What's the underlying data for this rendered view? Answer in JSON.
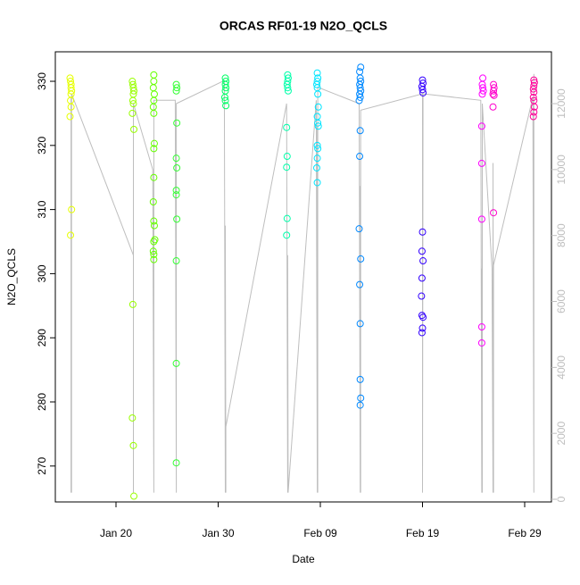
{
  "chart_data": {
    "type": "scatter",
    "title": "ORCAS RF01-19 N2O_QCLS",
    "x_label": "Date",
    "y_label": "N2O_QCLS",
    "xlim": [
      14.06,
      62.62
    ],
    "ylim": [
      264.4,
      334.6
    ],
    "y2lim": [
      -81,
      13572
    ],
    "xticks": [
      {
        "value": 20,
        "label": "Jan 20"
      },
      {
        "value": 30,
        "label": "Jan 30"
      },
      {
        "value": 40,
        "label": "Feb 09"
      },
      {
        "value": 50,
        "label": "Feb 19"
      },
      {
        "value": 60,
        "label": "Feb 29"
      }
    ],
    "yticks": [
      270,
      280,
      290,
      300,
      310,
      320,
      330
    ],
    "y2ticks": [
      0,
      2000,
      4000,
      6000,
      8000,
      10000,
      12000
    ],
    "line_series": {
      "axis": "y2",
      "color": "#bebebe",
      "x": [
        15.6,
        15.6,
        15.65,
        15.65,
        21.7,
        21.7,
        21.7,
        23.6,
        23.7,
        23.7,
        25.8,
        25.9,
        25.9,
        30.6,
        30.7,
        30.7,
        30.75,
        30.75,
        36.7,
        36.8,
        36.8,
        36.85,
        39.6,
        39.7,
        39.7,
        39.75,
        39.75,
        43.8,
        43.9,
        43.9,
        43.95,
        43.95,
        50.0,
        50.0,
        50.05,
        55.7,
        55.8,
        55.8,
        55.85,
        55.85,
        56.8,
        56.9,
        56.9,
        56.95,
        56.95,
        60.8,
        60.9,
        60.9
      ],
      "values": [
        200,
        12200,
        200,
        12300,
        7400,
        200,
        12000,
        10000,
        200,
        12100,
        12100,
        200,
        12000,
        12700,
        200,
        8300,
        200,
        2200,
        12000,
        200,
        7400,
        200,
        12100,
        200,
        11300,
        200,
        12500,
        12000,
        200,
        9500,
        200,
        11800,
        12300,
        200,
        12300,
        12100,
        200,
        7000,
        200,
        12000,
        7000,
        200,
        10200,
        200,
        7100,
        12200,
        200,
        12900
      ]
    },
    "series": [
      {
        "color": "#e6ff00",
        "x": [
          15.5,
          15.55,
          15.6,
          15.6,
          15.65,
          15.6,
          15.55,
          15.6,
          15.5,
          15.65,
          15.55
        ],
        "values": [
          330.5,
          330,
          329.5,
          329,
          328.5,
          328,
          327,
          326,
          324.5,
          310,
          306
        ]
      },
      {
        "color": "#99ff00",
        "x": [
          21.6,
          21.65,
          21.7,
          21.75,
          21.7,
          21.65,
          21.7,
          21.6,
          21.75,
          21.65,
          21.6,
          21.7,
          21.75
        ],
        "values": [
          330,
          329.5,
          329,
          328.5,
          328,
          327,
          326.5,
          325,
          322.5,
          295.2,
          277.5,
          273.2,
          265.3
        ]
      },
      {
        "color": "#66ff00",
        "x": [
          23.7,
          23.7,
          23.65,
          23.75,
          23.7,
          23.65,
          23.7,
          23.75,
          23.7,
          23.7,
          23.65,
          23.7,
          23.75,
          23.8,
          23.7,
          23.65,
          23.7,
          23.7
        ],
        "values": [
          331,
          330,
          329,
          328,
          327,
          326,
          325,
          320.3,
          319.5,
          315,
          311.2,
          308.2,
          307.5,
          305.3,
          305,
          303.5,
          303,
          302.2
        ]
      },
      {
        "color": "#33ff33",
        "x": [
          25.9,
          25.95,
          25.9,
          25.95,
          25.9,
          25.95,
          25.9,
          25.9,
          25.95,
          25.9,
          25.9,
          25.9
        ],
        "values": [
          329.5,
          329,
          328.5,
          323.5,
          318,
          316.5,
          313,
          312.3,
          308.5,
          302,
          286,
          270.5
        ]
      },
      {
        "color": "#00ff66",
        "x": [
          30.7,
          30.75,
          30.7,
          30.75,
          30.7,
          30.65,
          30.7,
          30.75
        ],
        "values": [
          330.5,
          330,
          329.5,
          329,
          328.5,
          327.5,
          327,
          326.2
        ]
      },
      {
        "color": "#00ffaa",
        "x": [
          36.8,
          36.85,
          36.8,
          36.75,
          36.8,
          36.85,
          36.7,
          36.75,
          36.7,
          36.75,
          36.7
        ],
        "values": [
          331,
          330.5,
          330,
          329.5,
          329,
          328.5,
          322.8,
          318.3,
          316.6,
          308.6,
          306
        ]
      },
      {
        "color": "#00e5ff",
        "x": [
          39.7,
          39.75,
          39.7,
          39.65,
          39.7,
          39.75,
          39.8,
          39.7,
          39.75,
          39.8,
          39.7,
          39.75,
          39.7,
          39.65,
          39.7
        ],
        "values": [
          331.3,
          330.5,
          330,
          329.5,
          329,
          328,
          326,
          324.5,
          323.5,
          323,
          320,
          319.5,
          318,
          316.5,
          314.2
        ]
      },
      {
        "color": "#0088ff",
        "x": [
          43.95,
          43.85,
          43.9,
          43.95,
          43.85,
          43.9,
          43.95,
          43.85,
          43.9,
          43.8,
          43.9,
          43.85,
          43.8,
          43.95,
          43.85,
          43.9,
          43.9,
          43.95,
          43.9
        ],
        "values": [
          332.2,
          331.5,
          330.5,
          330,
          329.5,
          329,
          328.5,
          328,
          327.5,
          327,
          322.3,
          318.3,
          307,
          302.3,
          298.3,
          292.2,
          283.5,
          280.6,
          279.5
        ]
      },
      {
        "color": "#3300ff",
        "x": [
          50.0,
          50.05,
          49.95,
          50.0,
          50.05,
          50.0,
          49.95,
          50.05,
          49.95,
          49.9,
          49.95,
          50.05,
          50.0,
          49.95
        ],
        "values": [
          330.2,
          329.7,
          329.2,
          328.7,
          328.2,
          306.5,
          303.5,
          302,
          299.3,
          296.5,
          293.5,
          293.2,
          291.5,
          290.8
        ]
      },
      {
        "color": "#ff00ff",
        "x": [
          55.9,
          55.85,
          55.9,
          55.95,
          55.85,
          55.8,
          55.8,
          55.8,
          55.8,
          55.8
        ],
        "values": [
          330.5,
          329.5,
          329,
          328.5,
          328,
          323,
          317.2,
          308.5,
          291.7,
          289.2
        ]
      },
      {
        "color": "#ff00cc",
        "x": [
          56.95,
          57.0,
          56.95,
          56.9,
          57.0,
          56.9,
          56.95
        ],
        "values": [
          329.5,
          329,
          328.5,
          328,
          327.8,
          326,
          309.5
        ]
      },
      {
        "color": "#ff0099",
        "x": [
          60.9,
          60.95,
          60.9,
          60.85,
          60.9,
          60.85,
          60.9,
          60.95,
          60.9,
          60.85
        ],
        "values": [
          330.2,
          329.8,
          329.3,
          328.8,
          328.3,
          327.5,
          327,
          326,
          325.2,
          324.5
        ]
      }
    ]
  }
}
